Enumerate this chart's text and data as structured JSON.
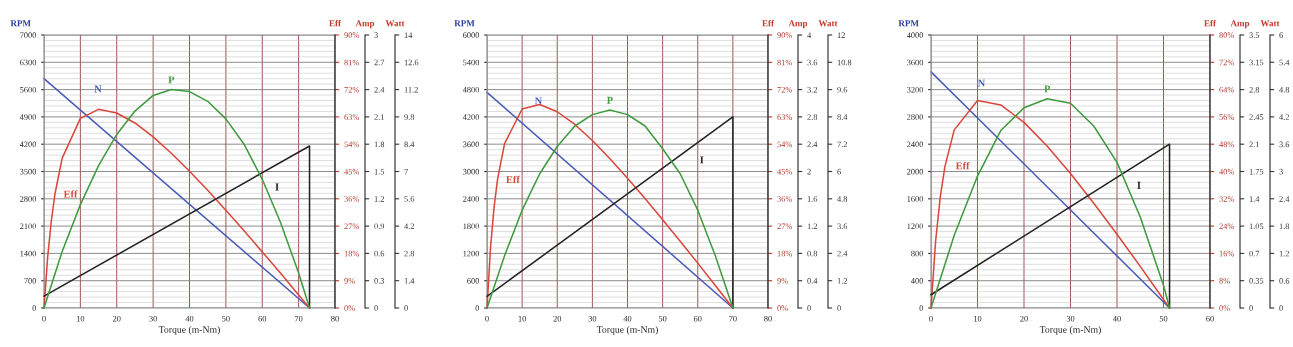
{
  "chart_data": [
    {
      "type": "line",
      "xlabel": "Torque (m-Nm)",
      "ylabel": "RPM",
      "y2label": "Eff",
      "y3label": "Amp",
      "grid": true,
      "legend": false,
      "marker": "none",
      "line_style": "solid",
      "xlim": [
        0,
        80
      ],
      "xticks": [
        0,
        10,
        20,
        30,
        40,
        50,
        60,
        70,
        80
      ],
      "ylim": [
        0,
        7000
      ],
      "yticks": [
        0,
        700,
        1400,
        2100,
        2800,
        3500,
        4200,
        4900,
        5600,
        6300,
        7000
      ],
      "y2lim": [
        0,
        90
      ],
      "y2ticks": [
        {
          "value": 0,
          "label": "0%"
        },
        {
          "value": 9,
          "label": "9%"
        },
        {
          "value": 18,
          "label": "18%"
        },
        {
          "value": 27,
          "label": "27%"
        },
        {
          "value": 36,
          "label": "36%"
        },
        {
          "value": 45,
          "label": "45%"
        },
        {
          "value": 54,
          "label": "54%"
        },
        {
          "value": 63,
          "label": "63%"
        },
        {
          "value": 72,
          "label": "72%"
        },
        {
          "value": 81,
          "label": "81%"
        },
        {
          "value": 90,
          "label": "90%"
        }
      ],
      "y3lim": [
        0,
        3
      ],
      "y3ticks": [
        0,
        0.3,
        0.6,
        0.9,
        1.2,
        1.5,
        1.8,
        2.1,
        2.4,
        2.7,
        3
      ],
      "series": [
        {
          "name": "N",
          "color": "#4a5cb8",
          "axis": "y",
          "x": [
            0,
            73
          ],
          "values": [
            5880,
            0
          ]
        },
        {
          "name": "Eff",
          "color": "#d9473c",
          "axis": "y2",
          "x": [
            0,
            1,
            2,
            3,
            5,
            10,
            15,
            20,
            25,
            30,
            35,
            40,
            45,
            50,
            55,
            60,
            65,
            70,
            73
          ],
          "values": [
            0,
            16.7,
            28.6,
            37.5,
            49.4,
            62.5,
            65.5,
            64.3,
            61.0,
            56.4,
            51.0,
            45.1,
            38.8,
            32.2,
            25.5,
            18.5,
            11.5,
            4.3,
            0
          ]
        },
        {
          "name": "I",
          "color": "#222222",
          "axis": "y3",
          "x": [
            0,
            73,
            73
          ],
          "values": [
            0.13,
            1.78,
            0
          ]
        }
      ]
    },
    {
      "type": "line",
      "xlabel": "Torque (m-Nm)",
      "ylabel": "RPM",
      "y2label": "Eff",
      "y3label": "Amp",
      "grid": true,
      "legend": false,
      "marker": "none",
      "line_style": "solid",
      "xlim": [
        0,
        80
      ],
      "xticks": [
        0,
        10,
        20,
        30,
        40,
        50,
        60,
        70,
        80
      ],
      "ylim": [
        0,
        6000
      ],
      "yticks": [
        0,
        600,
        1200,
        1800,
        2400,
        3000,
        3600,
        4200,
        4800,
        5400,
        6000
      ],
      "y2lim": [
        0,
        90
      ],
      "y2ticks": [
        {
          "value": 0,
          "label": "0%"
        },
        {
          "value": 9,
          "label": "9%"
        },
        {
          "value": 18,
          "label": "18%"
        },
        {
          "value": 27,
          "label": "27%"
        },
        {
          "value": 36,
          "label": "36%"
        },
        {
          "value": 45,
          "label": "45%"
        },
        {
          "value": 54,
          "label": "54%"
        },
        {
          "value": 63,
          "label": "63%"
        },
        {
          "value": 72,
          "label": "72%"
        },
        {
          "value": 81,
          "label": "81%"
        },
        {
          "value": 90,
          "label": "90%"
        }
      ],
      "y3lim": [
        0,
        4
      ],
      "y3ticks": [
        0,
        0.4,
        0.8,
        1.2,
        1.6,
        2,
        2.4,
        2.8,
        3.2,
        3.6,
        4
      ],
      "series": [
        {
          "name": "N",
          "color": "#4a5cb8",
          "axis": "y",
          "x": [
            0,
            70
          ],
          "values": [
            4740,
            0
          ]
        },
        {
          "name": "Eff",
          "color": "#d9473c",
          "axis": "y2",
          "x": [
            0,
            1,
            2,
            3,
            5,
            10,
            15,
            20,
            25,
            30,
            35,
            40,
            45,
            50,
            55,
            60,
            65,
            70
          ],
          "values": [
            0,
            19.8,
            33.1,
            42.4,
            54.2,
            65.6,
            67.1,
            64.7,
            60.5,
            55.2,
            49.2,
            42.8,
            36.1,
            29.1,
            22.0,
            14.8,
            7.4,
            0
          ]
        },
        {
          "name": "I",
          "color": "#222222",
          "axis": "y3",
          "x": [
            0,
            70,
            70
          ],
          "values": [
            0.17,
            2.8,
            0
          ]
        }
      ]
    },
    {
      "type": "line",
      "xlabel": "Torque (m-Nm)",
      "ylabel": "RPM",
      "y2label": "Eff",
      "y3label": "Amp",
      "grid": true,
      "legend": false,
      "marker": "none",
      "line_style": "solid",
      "xlim": [
        0,
        60
      ],
      "xticks": [
        0,
        10,
        20,
        30,
        40,
        50,
        60
      ],
      "ylim": [
        0,
        4000
      ],
      "yticks": [
        0,
        400,
        800,
        1200,
        1600,
        2000,
        2400,
        2800,
        3200,
        3600,
        4000
      ],
      "y2lim": [
        0,
        80
      ],
      "y2ticks": [
        {
          "value": 0,
          "label": "0%"
        },
        {
          "value": 8,
          "label": "8%"
        },
        {
          "value": 16,
          "label": "16%"
        },
        {
          "value": 24,
          "label": "24%"
        },
        {
          "value": 32,
          "label": "32%"
        },
        {
          "value": 40,
          "label": "40%"
        },
        {
          "value": 48,
          "label": "48%"
        },
        {
          "value": 56,
          "label": "56%"
        },
        {
          "value": 64,
          "label": "64%"
        },
        {
          "value": 72,
          "label": "72%"
        },
        {
          "value": 80,
          "label": "80%"
        }
      ],
      "y3lim": [
        0,
        3.5
      ],
      "y3ticks": [
        0,
        0.35,
        0.7,
        1.05,
        1.4,
        1.75,
        2.1,
        2.45,
        2.8,
        3.15,
        3.5
      ],
      "series": [
        {
          "name": "N",
          "color": "#4a5cb8",
          "axis": "y",
          "x": [
            0,
            51.3
          ],
          "values": [
            3460,
            0
          ]
        },
        {
          "name": "Eff",
          "color": "#d9473c",
          "axis": "y2",
          "x": [
            0,
            1,
            2,
            3,
            5,
            10,
            15,
            20,
            25,
            30,
            35,
            40,
            45,
            50,
            51.3
          ],
          "values": [
            0,
            19.7,
            32.6,
            41.5,
            52.2,
            60.8,
            59.5,
            54.4,
            47.4,
            39.4,
            30.7,
            21.6,
            12.2,
            2.5,
            0
          ]
        },
        {
          "name": "I",
          "color": "#222222",
          "axis": "y3",
          "x": [
            0,
            51.3,
            51.3
          ],
          "values": [
            0.17,
            2.1,
            0
          ]
        }
      ]
    },
    {
      "type": "line",
      "ylabel": "Watt",
      "tick_labels": "y",
      "grid": true,
      "legend": false,
      "marker": "none",
      "line_style": "solid",
      "xlim": [
        0,
        80
      ],
      "xticks": [
        0,
        10,
        20,
        30,
        40,
        50,
        60,
        70,
        80
      ],
      "ylim": [
        0,
        14
      ],
      "yticks": [
        0,
        1.4,
        2.8,
        4.2,
        5.6,
        7,
        8.4,
        9.8,
        11.2,
        12.6,
        14
      ],
      "series": [
        {
          "name": "P",
          "color": "#3f9a3f",
          "x": [
            0,
            5,
            10,
            15,
            20,
            25,
            30,
            35,
            40,
            45,
            50,
            55,
            60,
            65,
            70,
            73
          ],
          "values": [
            0,
            2.9,
            5.3,
            7.3,
            8.9,
            10.1,
            10.9,
            11.2,
            11.1,
            10.6,
            9.7,
            8.4,
            6.6,
            4.4,
            1.8,
            0
          ]
        }
      ]
    },
    {
      "type": "line",
      "ylabel": "Watt",
      "tick_labels": "y",
      "grid": true,
      "legend": false,
      "marker": "none",
      "line_style": "solid",
      "xlim": [
        0,
        80
      ],
      "xticks": [
        0,
        10,
        20,
        30,
        40,
        50,
        60,
        70,
        80
      ],
      "ylim": [
        0,
        12
      ],
      "yticks": [
        0,
        1.2,
        2.4,
        3.6,
        4.8,
        6,
        7.2,
        8.4,
        9.6,
        10.8,
        12
      ],
      "series": [
        {
          "name": "P",
          "color": "#3f9a3f",
          "x": [
            0,
            5,
            10,
            15,
            20,
            25,
            30,
            35,
            40,
            45,
            50,
            55,
            60,
            65,
            70
          ],
          "values": [
            0,
            2.3,
            4.3,
            5.9,
            7.1,
            8.0,
            8.5,
            8.7,
            8.5,
            8.0,
            7.0,
            5.9,
            4.3,
            2.3,
            0
          ]
        }
      ]
    },
    {
      "type": "line",
      "ylabel": "Watt",
      "tick_labels": "y",
      "grid": true,
      "legend": false,
      "marker": "none",
      "line_style": "solid",
      "xlim": [
        0,
        60
      ],
      "xticks": [
        0,
        10,
        20,
        30,
        40,
        50,
        60
      ],
      "ylim": [
        0,
        6
      ],
      "yticks": [
        0,
        0.6,
        1.2,
        1.8,
        2.4,
        3,
        3.6,
        4.2,
        4.8,
        5.4,
        6
      ],
      "series": [
        {
          "name": "P",
          "color": "#3f9a3f",
          "x": [
            0,
            5,
            10,
            15,
            20,
            25,
            30,
            35,
            40,
            45,
            50,
            51.3
          ],
          "values": [
            0,
            1.6,
            2.9,
            3.9,
            4.4,
            4.6,
            4.5,
            4.0,
            3.2,
            2.0,
            0.5,
            0
          ]
        }
      ]
    }
  ]
}
